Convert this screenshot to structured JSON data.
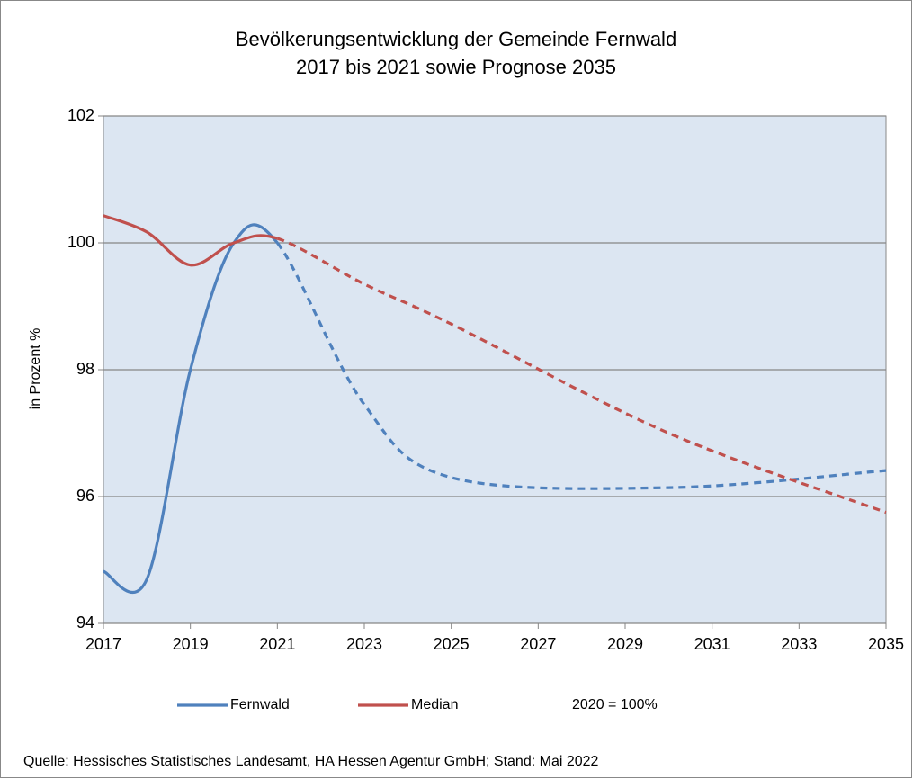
{
  "chart_data": {
    "type": "line",
    "title": [
      "Bevölkerungsentwicklung der Gemeinde Fernwald",
      "2017 bis 2021 sowie Prognose 2035"
    ],
    "y_label": "in Prozent %",
    "note": "2020 = 100%",
    "source": "Quelle: Hessisches Statistisches Landesamt, HA Hessen Agentur GmbH; Stand: Mai 2022",
    "x": [
      2017,
      2018,
      2019,
      2020,
      2021,
      2023,
      2025,
      2030,
      2035
    ],
    "dashed_from": 2021,
    "series": [
      {
        "name": "Fernwald",
        "color": "#4f81bd",
        "values": [
          94.82,
          94.7,
          98.0,
          100.0,
          100.0,
          97.45,
          96.3,
          96.14,
          96.41
        ]
      },
      {
        "name": "Median",
        "color": "#c0504d",
        "values": [
          100.43,
          100.17,
          99.65,
          100.0,
          100.07,
          99.35,
          98.72,
          97.0,
          95.75
        ]
      }
    ],
    "xlim": [
      2017,
      2035
    ],
    "xticks": [
      2017,
      2019,
      2021,
      2023,
      2025,
      2027,
      2029,
      2031,
      2033,
      2035
    ],
    "ylim": [
      94,
      102
    ],
    "yticks": [
      94,
      96,
      98,
      100,
      102
    ],
    "grid": true,
    "plot_background": "#dce6f2"
  }
}
